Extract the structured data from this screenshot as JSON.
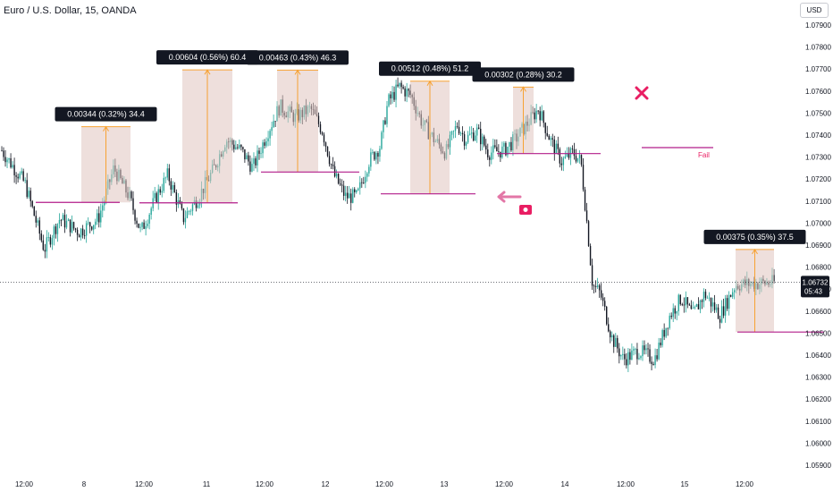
{
  "header": {
    "title": "Euro / U.S. Dollar, 15, OANDA",
    "currency_button": "USD"
  },
  "colors": {
    "up": "#26a69a",
    "down": "#131722",
    "box_fill": "#e0c4c0",
    "measure_line": "#f7a233",
    "level_line": "#b21d8a",
    "label_bg": "#131722",
    "accent": "#e91e63",
    "price_tag": "#131722"
  },
  "chart_data": {
    "type": "candlestick",
    "y_ticks": [
      "1.07900",
      "1.07800",
      "1.07700",
      "1.07600",
      "1.07500",
      "1.07400",
      "1.07300",
      "1.07200",
      "1.07100",
      "1.07000",
      "1.06900",
      "1.06800",
      "1.06700",
      "1.06600",
      "1.06500",
      "1.06400",
      "1.06300",
      "1.06200",
      "1.06100",
      "1.06000",
      "1.05900"
    ],
    "x_ticks": [
      "12:00",
      "8",
      "12:00",
      "11",
      "12:00",
      "12",
      "12:00",
      "13",
      "12:00",
      "14",
      "12:00",
      "15",
      "12:00"
    ],
    "price_path": [
      {
        "t": 0,
        "p": 1.0733
      },
      {
        "t": 0.03,
        "p": 1.0718
      },
      {
        "t": 0.055,
        "p": 1.0688
      },
      {
        "t": 0.075,
        "p": 1.0702
      },
      {
        "t": 0.1,
        "p": 1.0696
      },
      {
        "t": 0.125,
        "p": 1.0702
      },
      {
        "t": 0.145,
        "p": 1.0725
      },
      {
        "t": 0.165,
        "p": 1.0712
      },
      {
        "t": 0.18,
        "p": 1.0696
      },
      {
        "t": 0.2,
        "p": 1.0712
      },
      {
        "t": 0.215,
        "p": 1.0722
      },
      {
        "t": 0.235,
        "p": 1.0702
      },
      {
        "t": 0.255,
        "p": 1.0712
      },
      {
        "t": 0.275,
        "p": 1.0725
      },
      {
        "t": 0.29,
        "p": 1.0738
      },
      {
        "t": 0.31,
        "p": 1.0733
      },
      {
        "t": 0.325,
        "p": 1.0725
      },
      {
        "t": 0.345,
        "p": 1.0742
      },
      {
        "t": 0.36,
        "p": 1.0753
      },
      {
        "t": 0.38,
        "p": 1.0748
      },
      {
        "t": 0.4,
        "p": 1.0752
      },
      {
        "t": 0.415,
        "p": 1.0742
      },
      {
        "t": 0.43,
        "p": 1.0722
      },
      {
        "t": 0.445,
        "p": 1.0712
      },
      {
        "t": 0.46,
        "p": 1.0712
      },
      {
        "t": 0.475,
        "p": 1.0728
      },
      {
        "t": 0.49,
        "p": 1.0735
      },
      {
        "t": 0.5,
        "p": 1.0755
      },
      {
        "t": 0.515,
        "p": 1.0762
      },
      {
        "t": 0.53,
        "p": 1.0758
      },
      {
        "t": 0.545,
        "p": 1.0745
      },
      {
        "t": 0.56,
        "p": 1.0738
      },
      {
        "t": 0.575,
        "p": 1.0732
      },
      {
        "t": 0.59,
        "p": 1.0745
      },
      {
        "t": 0.6,
        "p": 1.0738
      },
      {
        "t": 0.615,
        "p": 1.0742
      },
      {
        "t": 0.63,
        "p": 1.0732
      },
      {
        "t": 0.65,
        "p": 1.0733
      },
      {
        "t": 0.665,
        "p": 1.0738
      },
      {
        "t": 0.68,
        "p": 1.0745
      },
      {
        "t": 0.695,
        "p": 1.0752
      },
      {
        "t": 0.71,
        "p": 1.0738
      },
      {
        "t": 0.725,
        "p": 1.0728
      },
      {
        "t": 0.74,
        "p": 1.0732
      },
      {
        "t": 0.75,
        "p": 1.0728
      },
      {
        "t": 0.76,
        "p": 1.0692
      },
      {
        "t": 0.765,
        "p": 1.0672
      },
      {
        "t": 0.775,
        "p": 1.0668
      },
      {
        "t": 0.79,
        "p": 1.0648
      },
      {
        "t": 0.805,
        "p": 1.0638
      },
      {
        "t": 0.825,
        "p": 1.0642
      },
      {
        "t": 0.845,
        "p": 1.0638
      },
      {
        "t": 0.865,
        "p": 1.0658
      },
      {
        "t": 0.88,
        "p": 1.0666
      },
      {
        "t": 0.895,
        "p": 1.0658
      },
      {
        "t": 0.91,
        "p": 1.0668
      },
      {
        "t": 0.93,
        "p": 1.0658
      },
      {
        "t": 0.95,
        "p": 1.0672
      },
      {
        "t": 1.0,
        "p": 1.0673
      }
    ],
    "last_price": {
      "value": "1.06732",
      "countdown": "05:43"
    },
    "annotations": [
      {
        "label": "0.00344 (0.32%) 34.4",
        "low": 1.07094,
        "high": 1.07438,
        "level": 1.07094
      },
      {
        "label": "0.00604 (0.56%) 60.4",
        "low": 1.07092,
        "high": 1.07696,
        "level": 1.07092
      },
      {
        "label": "0.00463 (0.43%) 46.3",
        "low": 1.07232,
        "high": 1.07695,
        "level": 1.07232
      },
      {
        "label": "0.00512 (0.48%) 51.2",
        "low": 1.07133,
        "high": 1.07645,
        "level": 1.07133
      },
      {
        "label": "0.00302 (0.28%) 30.2",
        "low": 1.07316,
        "high": 1.07618,
        "level": 1.07316
      },
      {
        "label": "0.00375 (0.35%) 37.5",
        "low": 1.06505,
        "high": 1.0688,
        "level": 1.06505
      }
    ],
    "fail_level": {
      "value": 1.07343,
      "label": "Fail"
    }
  }
}
